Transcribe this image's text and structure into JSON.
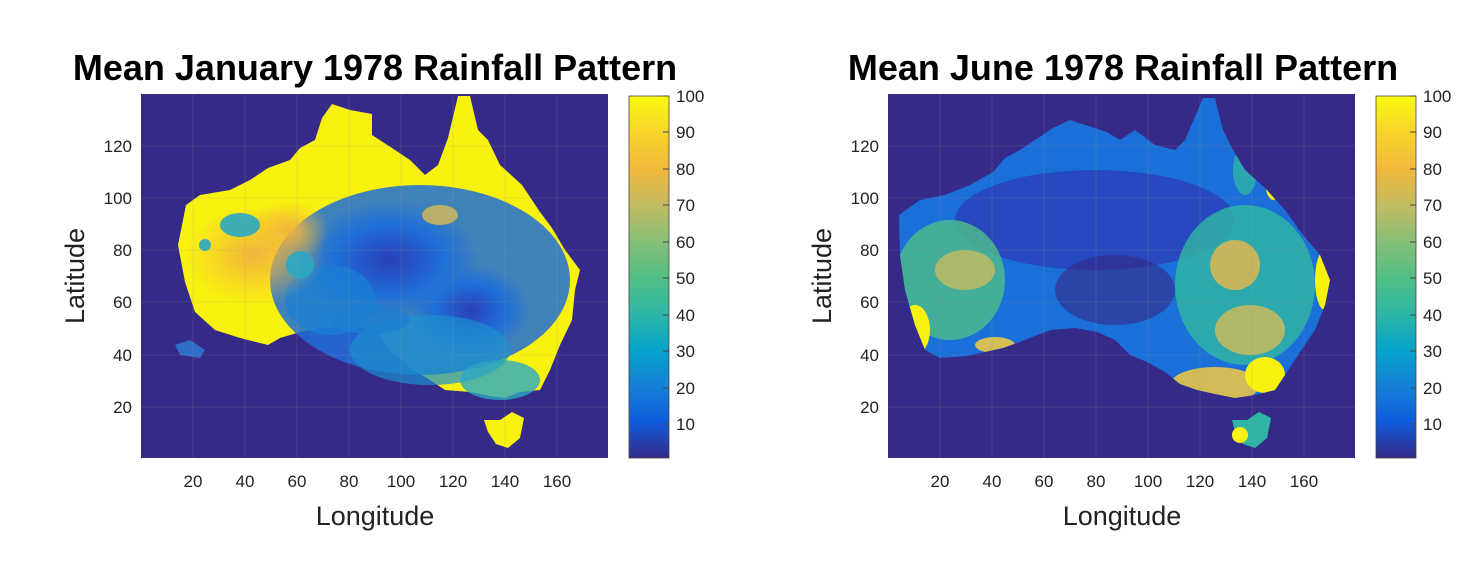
{
  "chart_data": [
    {
      "type": "heatmap",
      "title": "Mean January 1978 Rainfall Pattern",
      "xlabel": "Longitude",
      "ylabel": "Latitude",
      "x_ticks": [
        20,
        40,
        60,
        80,
        100,
        120,
        140,
        160
      ],
      "y_ticks": [
        20,
        40,
        60,
        80,
        100,
        120
      ],
      "xlim": [
        0,
        179
      ],
      "ylim": [
        0,
        139
      ],
      "colorbar": {
        "ticks": [
          10,
          20,
          30,
          40,
          50,
          60,
          70,
          80,
          90,
          100
        ],
        "range": [
          0,
          100
        ],
        "colormap": "parula"
      },
      "grid": true,
      "ocean_value": 0,
      "land_pattern": "Coastal and northern regions near 100; western interior 70-90; central and southeastern interior 10-40; Tasmania near 100"
    },
    {
      "type": "heatmap",
      "title": "Mean June 1978 Rainfall Pattern",
      "xlabel": "Longitude",
      "ylabel": "Latitude",
      "x_ticks": [
        20,
        40,
        60,
        80,
        100,
        120,
        140,
        160
      ],
      "y_ticks": [
        20,
        40,
        60,
        80,
        100,
        120
      ],
      "xlim": [
        0,
        179
      ],
      "ylim": [
        0,
        139
      ],
      "colorbar": {
        "ticks": [
          10,
          20,
          30,
          40,
          50,
          60,
          70,
          80,
          90,
          100
        ],
        "range": [
          0,
          100
        ],
        "colormap": "parula"
      },
      "grid": true,
      "ocean_value": 0,
      "land_pattern": "Mostly 10-40 across interior; southwest and southeast coasts 60-100; eastern coast 60-90"
    }
  ]
}
